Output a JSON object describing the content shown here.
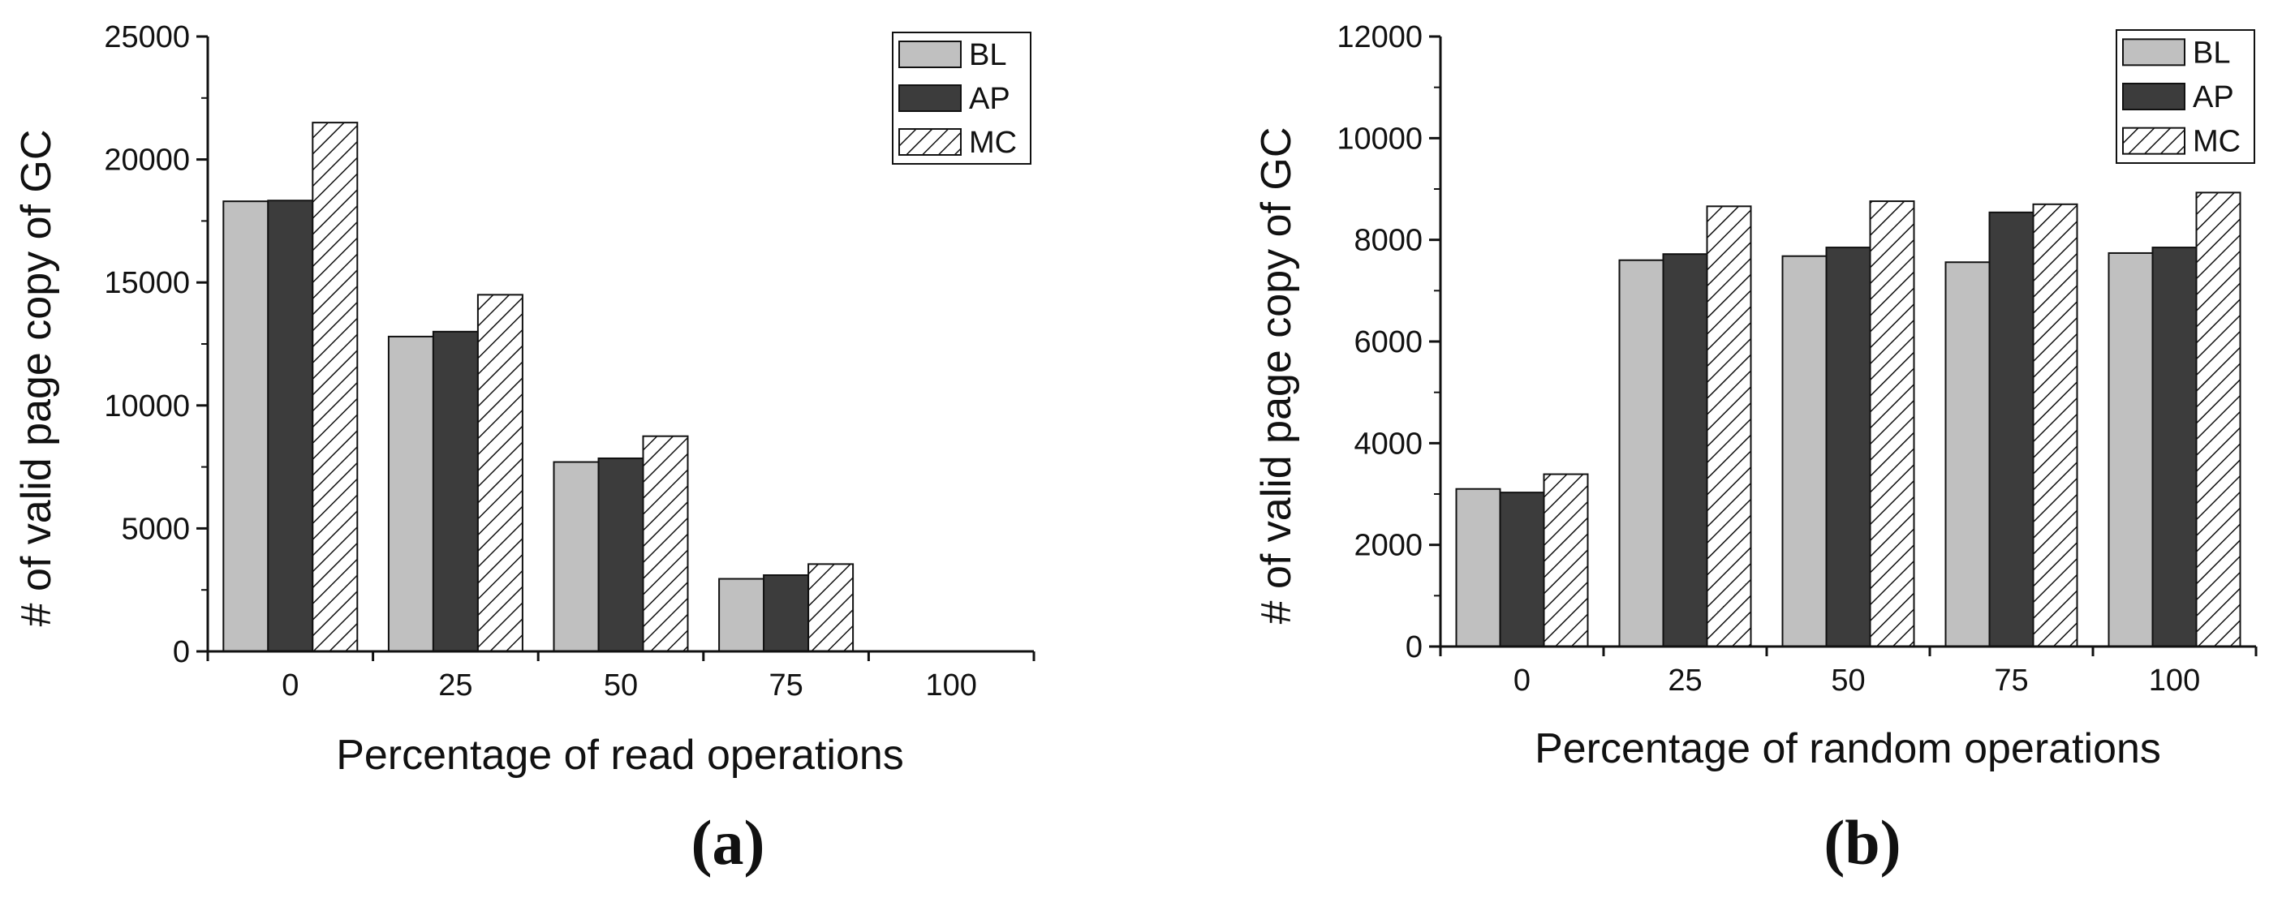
{
  "chart_data": [
    {
      "type": "bar",
      "panel_label": "(a)",
      "title": "",
      "xlabel": "Percentage of read operations",
      "ylabel": "# of valid page copy of GC",
      "categories": [
        "0",
        "25",
        "50",
        "75",
        "100"
      ],
      "ylim": [
        0,
        25000
      ],
      "yticks": [
        0,
        5000,
        10000,
        15000,
        20000,
        25000
      ],
      "legend_position": "top-right",
      "series": [
        {
          "name": "BL",
          "fill": "#c0c0c0",
          "pattern": "solid",
          "values": [
            18300,
            12800,
            7700,
            2950,
            0
          ]
        },
        {
          "name": "AP",
          "fill": "#3c3c3c",
          "pattern": "solid",
          "values": [
            18330,
            13000,
            7850,
            3100,
            0
          ]
        },
        {
          "name": "MC",
          "fill": "#ffffff",
          "pattern": "hatch",
          "values": [
            21500,
            14500,
            8750,
            3550,
            0
          ]
        }
      ]
    },
    {
      "type": "bar",
      "panel_label": "(b)",
      "title": "",
      "xlabel": "Percentage of random operations",
      "ylabel": "# of valid page copy of GC",
      "categories": [
        "0",
        "25",
        "50",
        "75",
        "100"
      ],
      "ylim": [
        0,
        12000
      ],
      "yticks": [
        0,
        2000,
        4000,
        6000,
        8000,
        10000,
        12000
      ],
      "legend_position": "top-right",
      "series": [
        {
          "name": "BL",
          "fill": "#c0c0c0",
          "pattern": "solid",
          "values": [
            3100,
            7600,
            7680,
            7560,
            7740
          ]
        },
        {
          "name": "AP",
          "fill": "#3c3c3c",
          "pattern": "solid",
          "values": [
            3030,
            7720,
            7850,
            8540,
            7850
          ]
        },
        {
          "name": "MC",
          "fill": "#ffffff",
          "pattern": "hatch",
          "values": [
            3390,
            8660,
            8760,
            8700,
            8930
          ]
        }
      ]
    }
  ]
}
